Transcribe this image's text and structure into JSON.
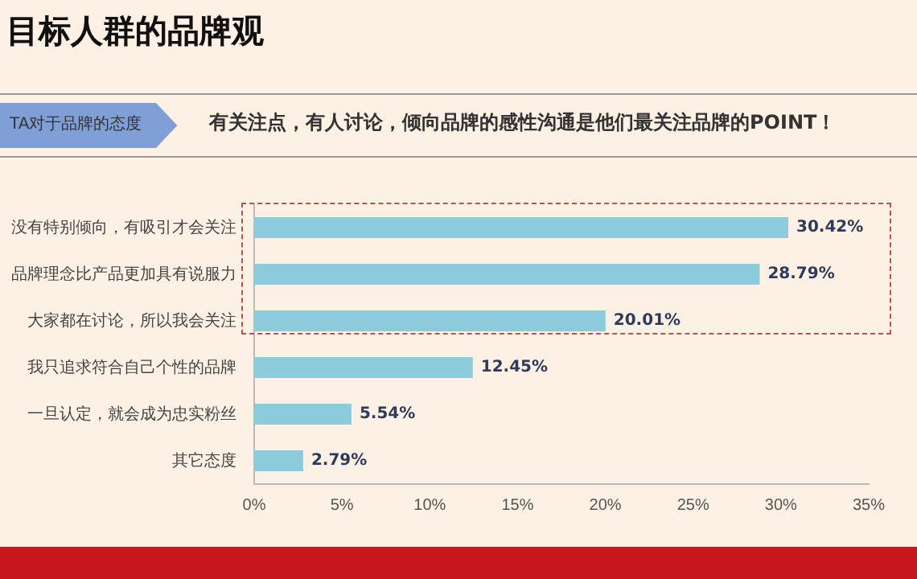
{
  "chart_data": {
    "type": "bar",
    "orientation": "horizontal",
    "title": "目标人群的品牌观",
    "subtitle": "TA对于品牌的态度",
    "annotations": [
      "有关注点，有人讨论，倾向品牌的感性沟通是他们最关注品牌的POINT！"
    ],
    "categories": [
      "没有特别倾向，有吸引才会关注",
      "品牌理念比产品更加具有说服力",
      "大家都在讨论，所以我会关注",
      "我只追求符合自己个性的品牌",
      "一旦认定，就会成为忠实粉丝",
      "其它态度"
    ],
    "values": [
      30.42,
      28.79,
      20.01,
      12.45,
      5.54,
      2.79
    ],
    "value_labels": [
      "30.42%",
      "28.79%",
      "20.01%",
      "12.45%",
      "5.54%",
      "2.79%"
    ],
    "color": "#8ccbdc",
    "xlim": [
      0,
      35
    ],
    "xticks": [
      {
        "value": 0,
        "label": "0%"
      },
      {
        "value": 5,
        "label": "5%"
      },
      {
        "value": 10,
        "label": "10%"
      },
      {
        "value": 15,
        "label": "15%"
      },
      {
        "value": 20,
        "label": "20%"
      },
      {
        "value": 25,
        "label": "25%"
      },
      {
        "value": 30,
        "label": "30%"
      },
      {
        "value": 35,
        "label": "35%"
      }
    ],
    "grid": false,
    "legend": false
  }
}
